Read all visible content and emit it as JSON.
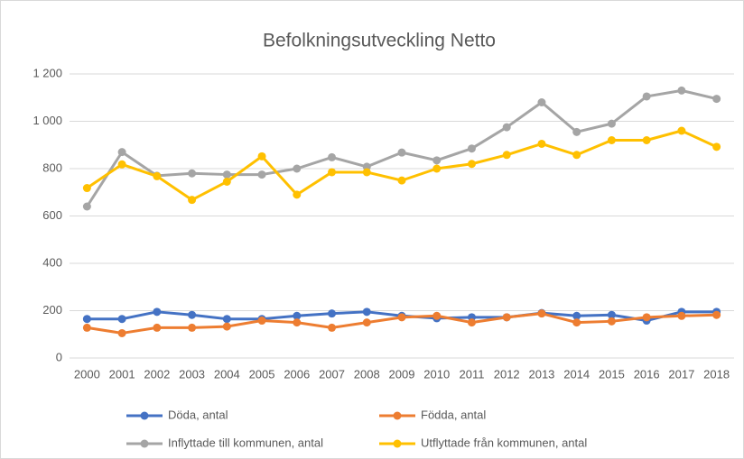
{
  "chart_data": {
    "type": "line",
    "title": "Befolkningsutveckling Netto",
    "categories": [
      "2000",
      "2001",
      "2002",
      "2003",
      "2004",
      "2005",
      "2006",
      "2007",
      "2008",
      "2009",
      "2010",
      "2011",
      "2012",
      "2013",
      "2014",
      "2015",
      "2016",
      "2017",
      "2018"
    ],
    "series": [
      {
        "name": "Döda, antal",
        "color": "#4472c4",
        "values": [
          165,
          165,
          195,
          182,
          165,
          165,
          178,
          188,
          195,
          178,
          168,
          172,
          172,
          190,
          178,
          182,
          158,
          195,
          195
        ]
      },
      {
        "name": "Födda, antal",
        "color": "#ed7d31",
        "values": [
          128,
          105,
          128,
          128,
          133,
          158,
          150,
          128,
          150,
          172,
          178,
          150,
          172,
          188,
          150,
          155,
          172,
          178,
          182
        ]
      },
      {
        "name": "Inflyttade till kommunen, antal",
        "color": "#a5a5a5",
        "values": [
          640,
          870,
          770,
          780,
          775,
          775,
          800,
          848,
          808,
          868,
          835,
          885,
          975,
          1080,
          955,
          990,
          1105,
          1130,
          1095
        ]
      },
      {
        "name": "Utflyttade från kommunen, antal",
        "color": "#ffc000",
        "values": [
          718,
          818,
          768,
          668,
          745,
          852,
          690,
          785,
          785,
          750,
          800,
          820,
          858,
          905,
          858,
          920,
          920,
          960,
          892
        ]
      }
    ],
    "ylim": [
      0,
      1200
    ],
    "yticks": [
      0,
      200,
      400,
      600,
      800,
      {
        "value": 1000,
        "label": "1 000"
      },
      {
        "value": 1200,
        "label": "1 200"
      }
    ],
    "grid": true,
    "legend": "bottom"
  }
}
